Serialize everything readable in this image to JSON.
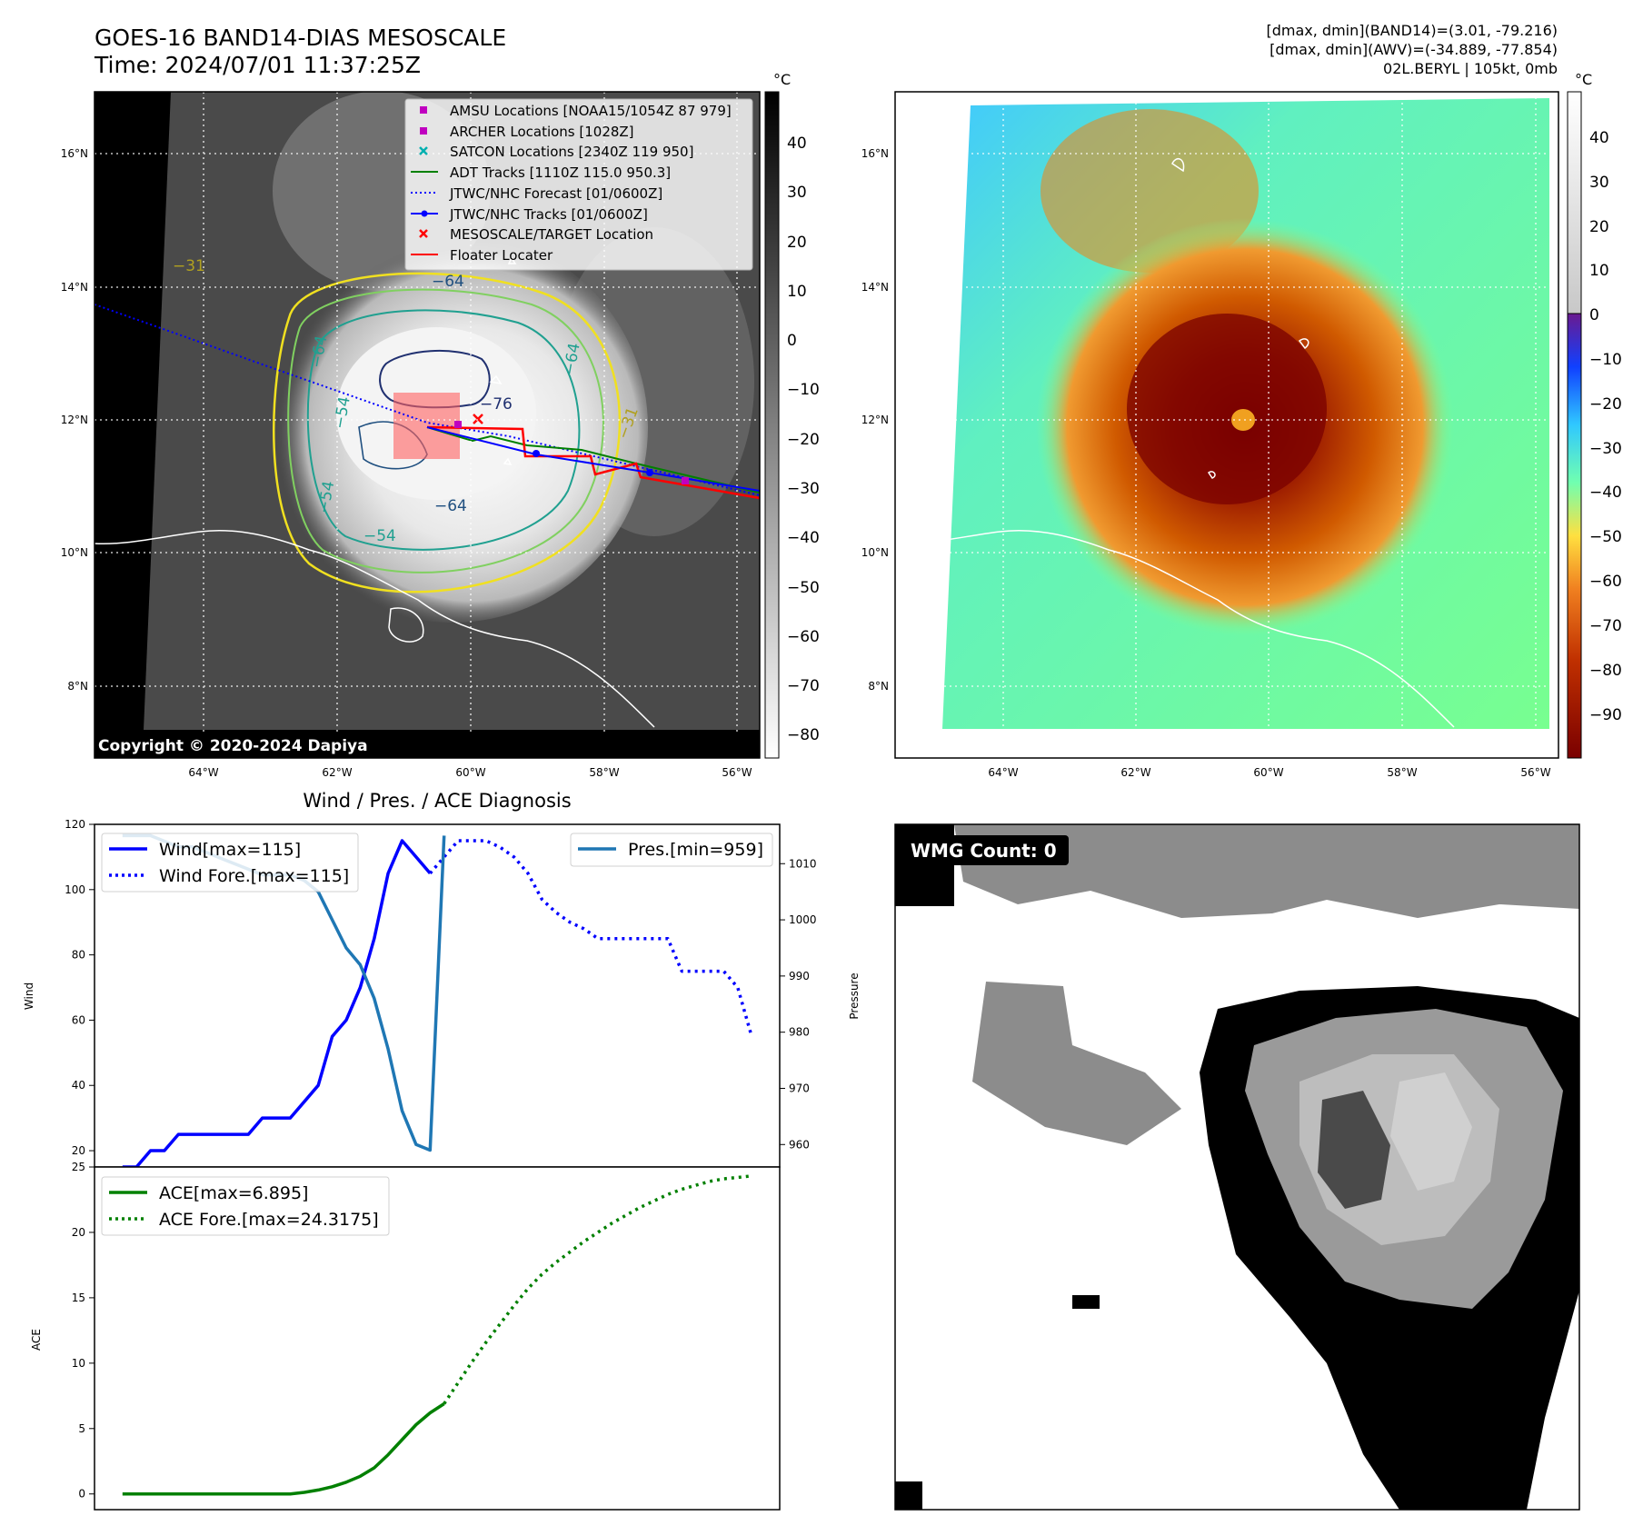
{
  "header": {
    "title": "GOES-16 BAND14-DIAS MESOSCALE",
    "time": "Time: 2024/07/01 11:37:25Z",
    "info_lines": [
      "[dmax, dmin](BAND14)=(3.01, -79.216)",
      "[dmax, dmin](AWV)=(-34.889, -77.854)",
      "02L.BERYL | 105kt, 0mb"
    ]
  },
  "map_axes": {
    "lon_ticks": [
      "64°W",
      "62°W",
      "60°W",
      "58°W",
      "56°W"
    ],
    "lat_ticks": [
      "16°N",
      "14°N",
      "12°N",
      "10°N",
      "8°N"
    ],
    "copyright": "Copyright © 2020-2024 Dapiya"
  },
  "panel_ir": {
    "colorbar_unit": "°C",
    "colorbar_ticks": [
      "40",
      "30",
      "20",
      "10",
      "0",
      "−10",
      "−20",
      "−30",
      "−40",
      "−50",
      "−60",
      "−70",
      "−80"
    ],
    "contour_labels": [
      "−64",
      "−76",
      "−64",
      "−54",
      "−64",
      "−54",
      "−54",
      "−31",
      "−31",
      "−64"
    ],
    "legend": [
      {
        "label": "AMSU Locations [NOAA15/1054Z 87 979]",
        "marker": "square",
        "color": "#c000c0"
      },
      {
        "label": "ARCHER Locations [1028Z]",
        "marker": "square",
        "color": "#c000c0"
      },
      {
        "label": "SATCON Locations [2340Z 119 950]",
        "marker": "x",
        "color": "#00b0b0"
      },
      {
        "label": "ADT Tracks [1110Z 115.0 950.3]",
        "marker": "line",
        "color": "#008000"
      },
      {
        "label": "JTWC/NHC Forecast [01/0600Z]",
        "marker": "dotted",
        "color": "#0000ff"
      },
      {
        "label": "JTWC/NHC Tracks [01/0600Z]",
        "marker": "line-dot",
        "color": "#0000ff"
      },
      {
        "label": "MESOSCALE/TARGET Location",
        "marker": "x",
        "color": "#ff0000"
      },
      {
        "label": "Floater Locater",
        "marker": "line",
        "color": "#ff0000"
      }
    ]
  },
  "panel_awv": {
    "colorbar_unit": "°C",
    "colorbar_ticks": [
      "40",
      "30",
      "20",
      "10",
      "0",
      "−10",
      "−20",
      "−30",
      "−40",
      "−50",
      "−60",
      "−70",
      "−80",
      "−90"
    ]
  },
  "panel_wmg": {
    "label": "WMG Count: 0"
  },
  "chart_data": [
    {
      "type": "line",
      "title": "Wind / Pres. / ACE Diagnosis",
      "ylabel": "Wind",
      "ylabel_right": "Pressure",
      "ylim": [
        15,
        120
      ],
      "ylim_right": [
        956,
        1017
      ],
      "y_ticks": [
        "20",
        "40",
        "60",
        "80",
        "100",
        "120"
      ],
      "y_ticks_right": [
        "960",
        "970",
        "980",
        "990",
        "1000",
        "1010"
      ],
      "series": [
        {
          "name": "Wind[max=115]",
          "style": "solid",
          "color": "#0000ff",
          "axis": "left",
          "values": [
            [
              0,
              15
            ],
            [
              1,
              15
            ],
            [
              2,
              20
            ],
            [
              3,
              20
            ],
            [
              4,
              25
            ],
            [
              5,
              25
            ],
            [
              6,
              25
            ],
            [
              7,
              25
            ],
            [
              8,
              25
            ],
            [
              9,
              25
            ],
            [
              10,
              30
            ],
            [
              11,
              30
            ],
            [
              12,
              30
            ],
            [
              13,
              35
            ],
            [
              14,
              40
            ],
            [
              15,
              55
            ],
            [
              16,
              60
            ],
            [
              17,
              70
            ],
            [
              18,
              85
            ],
            [
              19,
              105
            ],
            [
              20,
              115
            ],
            [
              21,
              110
            ],
            [
              22,
              105
            ]
          ]
        },
        {
          "name": "Wind Fore.[max=115]",
          "style": "dotted",
          "color": "#0000ff",
          "axis": "left",
          "values": [
            [
              22,
              105
            ],
            [
              23,
              110
            ],
            [
              24,
              115
            ],
            [
              25,
              115
            ],
            [
              26,
              115
            ],
            [
              27,
              113
            ],
            [
              28,
              110
            ],
            [
              29,
              105
            ],
            [
              30,
              97
            ],
            [
              31,
              93
            ],
            [
              32,
              90
            ],
            [
              33,
              88
            ],
            [
              34,
              85
            ],
            [
              35,
              85
            ],
            [
              36,
              85
            ],
            [
              37,
              85
            ],
            [
              38,
              85
            ],
            [
              39,
              85
            ],
            [
              40,
              75
            ],
            [
              41,
              75
            ],
            [
              42,
              75
            ],
            [
              43,
              75
            ],
            [
              44,
              70
            ],
            [
              45,
              55
            ]
          ]
        },
        {
          "name": "Pres.[min=959]",
          "style": "solid",
          "color": "#1f77b4",
          "axis": "right",
          "values": [
            [
              0,
              1015
            ],
            [
              1,
              1015
            ],
            [
              2,
              1015
            ],
            [
              3,
              1014
            ],
            [
              4,
              1013
            ],
            [
              5,
              1013
            ],
            [
              6,
              1012
            ],
            [
              7,
              1011
            ],
            [
              8,
              1010
            ],
            [
              9,
              1009
            ],
            [
              10,
              1008
            ],
            [
              11,
              1008
            ],
            [
              12,
              1008
            ],
            [
              13,
              1007
            ],
            [
              14,
              1005
            ],
            [
              15,
              1000
            ],
            [
              16,
              995
            ],
            [
              17,
              992
            ],
            [
              18,
              986
            ],
            [
              19,
              977
            ],
            [
              20,
              966
            ],
            [
              21,
              960
            ],
            [
              22,
              959
            ],
            [
              23,
              1015
            ]
          ]
        }
      ]
    },
    {
      "type": "line",
      "ylabel": "ACE",
      "ylim": [
        -1.2,
        25
      ],
      "y_ticks": [
        "0",
        "5",
        "10",
        "15",
        "20",
        "25"
      ],
      "series": [
        {
          "name": "ACE[max=6.895]",
          "style": "solid",
          "color": "#008000",
          "values": [
            [
              0,
              0
            ],
            [
              2,
              0
            ],
            [
              4,
              0
            ],
            [
              6,
              0
            ],
            [
              8,
              0
            ],
            [
              10,
              0
            ],
            [
              12,
              0
            ],
            [
              13,
              0.12
            ],
            [
              14,
              0.3
            ],
            [
              15,
              0.55
            ],
            [
              16,
              0.9
            ],
            [
              17,
              1.35
            ],
            [
              18,
              2.0
            ],
            [
              19,
              3.0
            ],
            [
              20,
              4.15
            ],
            [
              21,
              5.3
            ],
            [
              22,
              6.2
            ],
            [
              23,
              6.895
            ]
          ]
        },
        {
          "name": "ACE Fore.[max=24.3175]",
          "style": "dotted",
          "color": "#008000",
          "values": [
            [
              23,
              6.895
            ],
            [
              24,
              8.5
            ],
            [
              25,
              10.1
            ],
            [
              26,
              11.6
            ],
            [
              27,
              13.0
            ],
            [
              28,
              14.4
            ],
            [
              29,
              15.7
            ],
            [
              30,
              16.8
            ],
            [
              31,
              17.7
            ],
            [
              32,
              18.5
            ],
            [
              33,
              19.3
            ],
            [
              34,
              20.0
            ],
            [
              35,
              20.7
            ],
            [
              36,
              21.3
            ],
            [
              37,
              21.9
            ],
            [
              38,
              22.4
            ],
            [
              39,
              22.9
            ],
            [
              40,
              23.3
            ],
            [
              41,
              23.6
            ],
            [
              42,
              23.9
            ],
            [
              43,
              24.1
            ],
            [
              44,
              24.2
            ],
            [
              45,
              24.3175
            ]
          ]
        }
      ]
    }
  ]
}
